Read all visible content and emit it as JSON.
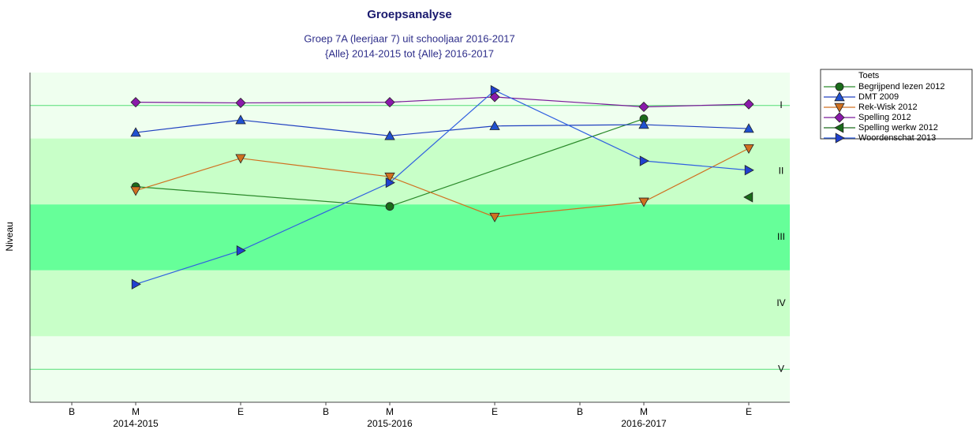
{
  "chart_data": {
    "type": "line",
    "title": "Groepsanalyse",
    "subtitle": [
      "Groep 7A (leerjaar 7) uit schooljaar 2016-2017",
      "{Alle} 2014-2015 tot {Alle} 2016-2017"
    ],
    "y_label": "Niveau",
    "categories": [
      "B",
      "M",
      "E",
      "B",
      "M",
      "E",
      "B",
      "M",
      "E"
    ],
    "x_sublabels": [
      null,
      "2014-2015",
      null,
      null,
      "2015-2016",
      null,
      null,
      "2016-2017",
      null
    ],
    "ylim": [
      5.5,
      0.5
    ],
    "yticks": [
      {
        "value": 1,
        "label": "I"
      },
      {
        "value": 2,
        "label": "II"
      },
      {
        "value": 3,
        "label": "III"
      },
      {
        "value": 4,
        "label": "IV"
      },
      {
        "value": 5,
        "label": "V"
      }
    ],
    "bands": [
      {
        "from": 0.5,
        "to": 1.5,
        "color": "#efffef"
      },
      {
        "from": 1.5,
        "to": 2.5,
        "color": "#c8ffc8"
      },
      {
        "from": 2.5,
        "to": 3.5,
        "color": "#66ff99"
      },
      {
        "from": 3.5,
        "to": 4.5,
        "color": "#c8ffc8"
      },
      {
        "from": 4.5,
        "to": 5.5,
        "color": "#efffef"
      }
    ],
    "grid_lines_at": [
      1,
      5
    ],
    "connect_gaps": true,
    "legend_title": "Toets",
    "legend": "outside-right",
    "series": [
      {
        "name": "Begrijpend lezen 2012",
        "color": "#2a8a2a",
        "marker_color": "#1a6b1a",
        "marker": "circle",
        "values": [
          null,
          2.23,
          null,
          null,
          2.53,
          null,
          null,
          1.2,
          null
        ]
      },
      {
        "name": "DMT 2009",
        "color": "#2040c0",
        "marker_color": "#2050d0",
        "marker": "triangle-up",
        "values": [
          null,
          1.41,
          1.22,
          null,
          1.46,
          1.31,
          null,
          1.29,
          1.35
        ]
      },
      {
        "name": "Rek-Wisk 2012",
        "color": "#d07020",
        "marker_color": "#d07020",
        "marker": "triangle-down",
        "values": [
          null,
          2.29,
          1.8,
          null,
          2.08,
          2.69,
          null,
          2.46,
          1.65
        ]
      },
      {
        "name": "Spelling 2012",
        "color": "#7a1a9a",
        "marker_color": "#8a1aaa",
        "marker": "diamond",
        "values": [
          null,
          0.95,
          0.96,
          null,
          0.95,
          0.87,
          null,
          1.02,
          0.98
        ]
      },
      {
        "name": "Spelling werkw 2012",
        "color": "#1a6b1a",
        "marker_color": "#1a6b1a",
        "marker": "triangle-left",
        "values": [
          null,
          null,
          null,
          null,
          null,
          null,
          null,
          null,
          2.39
        ]
      },
      {
        "name": "Woordenschat 2013",
        "color": "#3060e0",
        "marker_color": "#2040d0",
        "marker": "triangle-right",
        "values": [
          null,
          3.71,
          3.2,
          null,
          2.17,
          0.77,
          null,
          1.84,
          1.98
        ]
      }
    ]
  }
}
